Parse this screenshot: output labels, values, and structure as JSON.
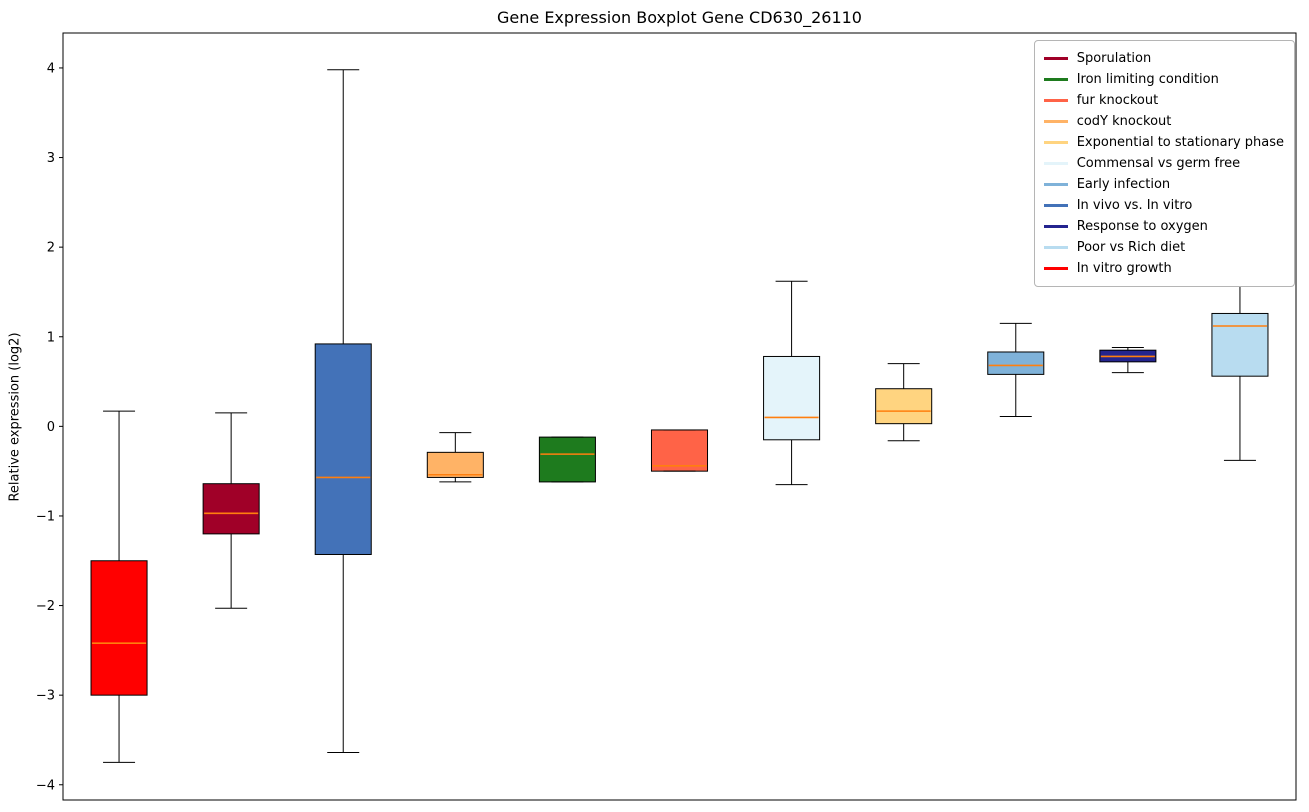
{
  "chart_data": {
    "type": "boxplot",
    "title": "Gene Expression Boxplot Gene CD630_26110",
    "ylabel": "Relative expression (log2)",
    "ylim": [
      -4.17,
      4.39
    ],
    "yticks": [
      -4,
      -3,
      -2,
      -1,
      0,
      1,
      2,
      3,
      4
    ],
    "xlim": [
      0.5,
      11.5
    ],
    "grid": false,
    "legend_position": "upper right",
    "median_color": "#ff7f0e",
    "box_edge_color": "#000000",
    "box_width": 0.5,
    "boxes": [
      {
        "position": 1,
        "name": "In vitro growth",
        "color": "#ff0000",
        "whisker_low": -3.75,
        "q1": -3.0,
        "median": -2.42,
        "q3": -1.5,
        "whisker_high": 0.17
      },
      {
        "position": 2,
        "name": "Sporulation",
        "color": "#a00028",
        "whisker_low": -2.03,
        "q1": -1.2,
        "median": -0.97,
        "q3": -0.64,
        "whisker_high": 0.15
      },
      {
        "position": 3,
        "name": "In vivo vs. In vitro",
        "color": "#4372b8",
        "whisker_low": -3.64,
        "q1": -1.43,
        "median": -0.57,
        "q3": 0.92,
        "whisker_high": 3.98
      },
      {
        "position": 4,
        "name": "codY knockout",
        "color": "#ffb366",
        "whisker_low": -0.62,
        "q1": -0.57,
        "median": -0.54,
        "q3": -0.29,
        "whisker_high": -0.07
      },
      {
        "position": 5,
        "name": "Iron limiting condition",
        "color": "#1e7b1e",
        "whisker_low": -0.62,
        "q1": -0.62,
        "median": -0.31,
        "q3": -0.12,
        "whisker_high": -0.12
      },
      {
        "position": 6,
        "name": "fur knockout",
        "color": "#ff6347",
        "whisker_low": -0.5,
        "q1": -0.5,
        "median": -0.44,
        "q3": -0.04,
        "whisker_high": -0.04
      },
      {
        "position": 7,
        "name": "Commensal vs germ free",
        "color": "#e4f4fa",
        "whisker_low": -0.65,
        "q1": -0.15,
        "median": 0.1,
        "q3": 0.78,
        "whisker_high": 1.62
      },
      {
        "position": 8,
        "name": "Exponential to stationary phase",
        "color": "#ffd480",
        "whisker_low": -0.16,
        "q1": 0.03,
        "median": 0.17,
        "q3": 0.42,
        "whisker_high": 0.7
      },
      {
        "position": 9,
        "name": "Early infection",
        "color": "#7fb2d9",
        "whisker_low": 0.11,
        "q1": 0.58,
        "median": 0.68,
        "q3": 0.83,
        "whisker_high": 1.15
      },
      {
        "position": 10,
        "name": "Response to oxygen",
        "color": "#24248f",
        "whisker_low": 0.6,
        "q1": 0.72,
        "median": 0.78,
        "q3": 0.85,
        "whisker_high": 0.88
      },
      {
        "position": 11,
        "name": "Poor vs Rich diet",
        "color": "#b8dcf0",
        "whisker_low": -0.38,
        "q1": 0.56,
        "median": 1.12,
        "q3": 1.26,
        "whisker_high": 1.65
      }
    ],
    "legend": [
      {
        "label": "Sporulation",
        "color": "#a00028"
      },
      {
        "label": "Iron limiting condition",
        "color": "#1e7b1e"
      },
      {
        "label": "fur knockout",
        "color": "#ff6347"
      },
      {
        "label": "codY knockout",
        "color": "#ffb366"
      },
      {
        "label": "Exponential to stationary phase",
        "color": "#ffd480"
      },
      {
        "label": "Commensal vs germ free",
        "color": "#e4f4fa"
      },
      {
        "label": "Early infection",
        "color": "#7fb2d9"
      },
      {
        "label": "In vivo vs. In vitro",
        "color": "#4372b8"
      },
      {
        "label": "Response to oxygen",
        "color": "#24248f"
      },
      {
        "label": "Poor vs Rich diet",
        "color": "#b8dcf0"
      },
      {
        "label": "In vitro growth",
        "color": "#ff0000"
      }
    ]
  }
}
